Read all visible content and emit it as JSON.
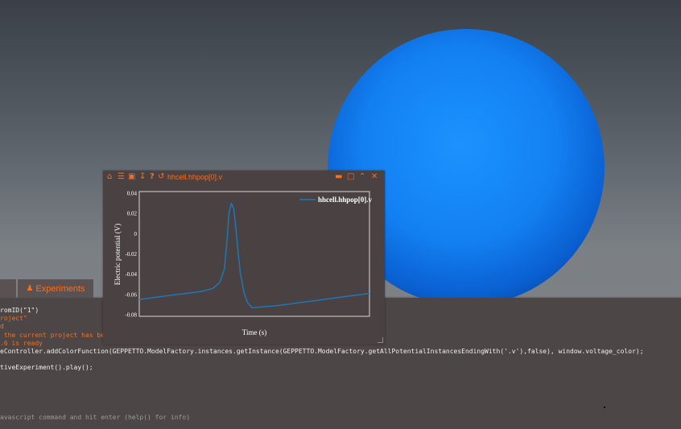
{
  "scene": {
    "sphere_color": "#1380f2"
  },
  "tabs": {
    "experiments_label": "Experiments",
    "experiments_icon": "user-flask-icon"
  },
  "console": {
    "lines": [
      {
        "text": "romID(\"1\")",
        "style": "white"
      },
      {
        "text": "roject\"",
        "style": "orange"
      },
      {
        "text": "d",
        "style": "orange"
      },
      {
        "text": " the current project has been",
        "style": "orange"
      },
      {
        "text": ".6 is ready",
        "style": "orange"
      },
      {
        "text": "eController.addColorFunction(GEPPETTO.ModelFactory.instances.getInstance(GEPPETTO.ModelFactory.getAllPotentialInstancesEndingWith('.v'),false), window.voltage_color);",
        "style": "white"
      },
      {
        "text": "",
        "style": "white"
      },
      {
        "text": "tiveExperiment().play();",
        "style": "white"
      }
    ],
    "prompt_placeholder": "avascript command and hit enter (help() for info)"
  },
  "widget": {
    "title": "hhcell.hhpop[0].v",
    "header_icons": [
      "home-icon",
      "list-icon",
      "image-icon",
      "download-icon",
      "help-icon",
      "history-icon"
    ],
    "window_icons": [
      "minimize-icon",
      "maximize-icon",
      "collapse-icon",
      "close-icon"
    ],
    "accent_color": "#f36f24"
  },
  "chart_data": {
    "type": "line",
    "xlabel": "Time (s)",
    "ylabel": "Electric potential (V)",
    "ylim": [
      -0.08,
      0.04
    ],
    "xlim": [
      0,
      1
    ],
    "yticks": [
      "0.04",
      "0.02",
      "0",
      "-0.02",
      "-0.04",
      "-0.06",
      "-0.08"
    ],
    "yticks_values": [
      0.04,
      0.02,
      0,
      -0.02,
      -0.04,
      -0.06,
      -0.08
    ],
    "grid": false,
    "legend_position": "top-right",
    "series": [
      {
        "name": "hhcell.hhpop[0].v",
        "color": "#1f77b4",
        "x": [
          0,
          0.1,
          0.2,
          0.27,
          0.32,
          0.35,
          0.37,
          0.38,
          0.39,
          0.4,
          0.41,
          0.42,
          0.43,
          0.44,
          0.455,
          0.47,
          0.49,
          0.5,
          0.55,
          0.6,
          0.7,
          0.8,
          0.9,
          1.0
        ],
        "y": [
          -0.065,
          -0.062,
          -0.059,
          -0.057,
          -0.054,
          -0.048,
          -0.035,
          -0.01,
          0.02,
          0.03,
          0.025,
          0.005,
          -0.02,
          -0.04,
          -0.058,
          -0.068,
          -0.073,
          -0.073,
          -0.072,
          -0.071,
          -0.068,
          -0.065,
          -0.062,
          -0.059
        ]
      }
    ]
  }
}
